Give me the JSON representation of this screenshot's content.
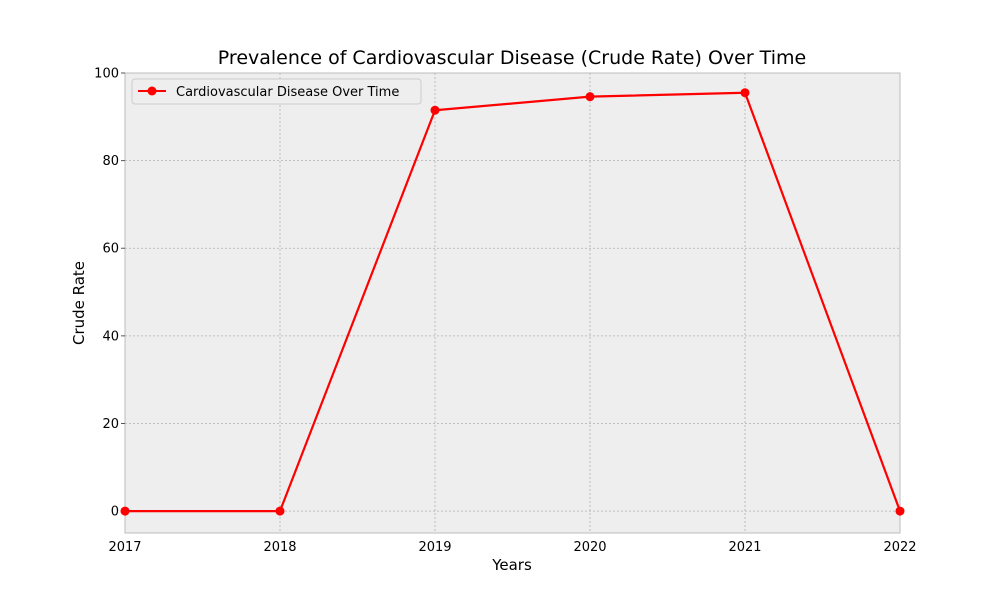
{
  "chart_data": {
    "type": "line",
    "title": "Prevalence of Cardiovascular Disease (Crude Rate) Over Time",
    "xlabel": "Years",
    "ylabel": "Crude Rate",
    "x": [
      2017,
      2018,
      2019,
      2020,
      2021,
      2022
    ],
    "xlim": [
      2017,
      2022
    ],
    "ylim": [
      -5,
      100
    ],
    "x_ticks": [
      "2017",
      "2018",
      "2019",
      "2020",
      "2021",
      "2022"
    ],
    "y_ticks": [
      0,
      20,
      40,
      60,
      80,
      100
    ],
    "grid": true,
    "legend_position": "top-left",
    "series": [
      {
        "name": "Cardiovascular Disease Over Time",
        "color": "#ff0000",
        "marker": "circle",
        "values": [
          0,
          0,
          91.5,
          94.6,
          95.5,
          0
        ]
      }
    ]
  },
  "style": {
    "plot_background": "#eeeeee",
    "grid_color": "#b0b0b0",
    "spine_color": "#bcbcbc"
  }
}
